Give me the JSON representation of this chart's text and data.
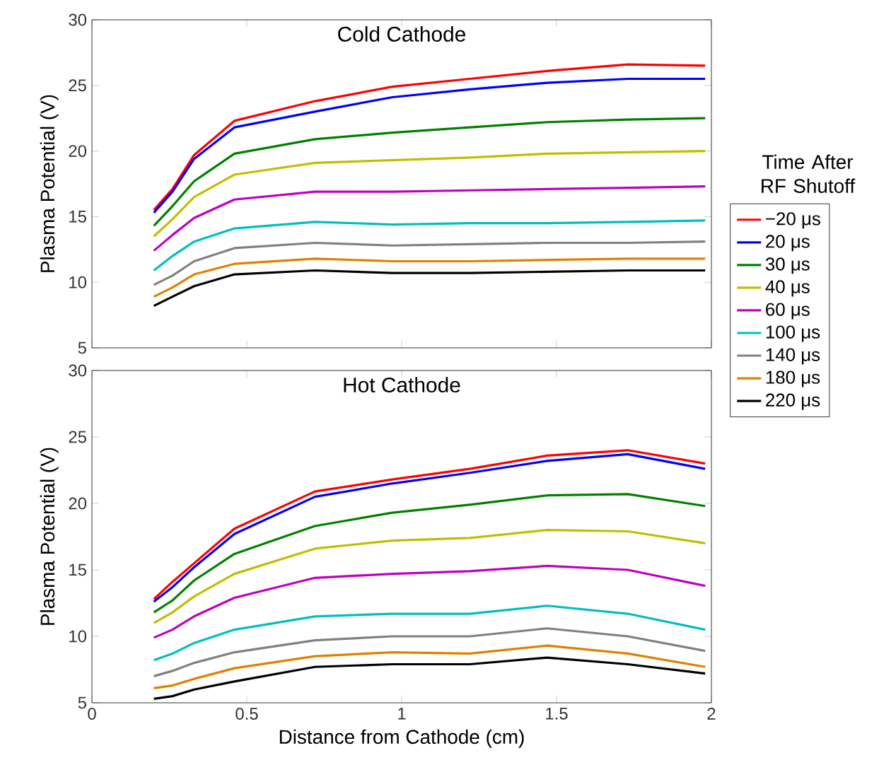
{
  "chart_data": [
    {
      "type": "line",
      "title": "Cold Cathode",
      "ylabel": "Plasma Potential (V)",
      "legend_title": "Time After RF Shutoff",
      "legend": "right",
      "tick_labels": "y",
      "x": [
        0.2,
        0.26,
        0.33,
        0.46,
        0.72,
        0.97,
        1.22,
        1.47,
        1.73,
        1.98
      ],
      "xlim": [
        0,
        2
      ],
      "xticks": [
        0,
        0.5,
        1,
        1.5,
        2
      ],
      "ylim": [
        5,
        30
      ],
      "yticks": [
        5,
        10,
        15,
        20,
        25,
        30
      ],
      "series": [
        {
          "name": "−20 μs",
          "color": "#ff0000",
          "values": [
            15.5,
            17.1,
            19.7,
            22.3,
            23.8,
            24.9,
            25.5,
            26.1,
            26.6,
            26.5
          ]
        },
        {
          "name": "20 μs",
          "color": "#0000ff",
          "values": [
            15.3,
            16.9,
            19.4,
            21.8,
            23.0,
            24.1,
            24.7,
            25.2,
            25.5,
            25.5
          ]
        },
        {
          "name": "30 μs",
          "color": "#008000",
          "values": [
            14.3,
            15.8,
            17.7,
            19.8,
            20.9,
            21.4,
            21.8,
            22.2,
            22.4,
            22.5
          ]
        },
        {
          "name": "40 μs",
          "color": "#bfbf00",
          "values": [
            13.5,
            14.8,
            16.5,
            18.2,
            19.1,
            19.3,
            19.5,
            19.8,
            19.9,
            20.0
          ]
        },
        {
          "name": "60 μs",
          "color": "#bf00bf",
          "values": [
            12.4,
            13.6,
            14.9,
            16.3,
            16.9,
            16.9,
            17.0,
            17.1,
            17.2,
            17.3
          ]
        },
        {
          "name": "100 μs",
          "color": "#00bfbf",
          "values": [
            10.9,
            12.0,
            13.1,
            14.1,
            14.6,
            14.4,
            14.5,
            14.5,
            14.6,
            14.7
          ]
        },
        {
          "name": "140 μs",
          "color": "#808080",
          "values": [
            9.8,
            10.5,
            11.6,
            12.6,
            13.0,
            12.8,
            12.9,
            13.0,
            13.0,
            13.1
          ]
        },
        {
          "name": "180 μs",
          "color": "#e08000",
          "values": [
            8.9,
            9.6,
            10.6,
            11.4,
            11.8,
            11.6,
            11.6,
            11.7,
            11.8,
            11.8
          ]
        },
        {
          "name": "220 μs",
          "color": "#000000",
          "values": [
            8.2,
            8.9,
            9.7,
            10.6,
            10.9,
            10.7,
            10.7,
            10.8,
            10.9,
            10.9
          ]
        }
      ]
    },
    {
      "type": "line",
      "title": "Hot Cathode",
      "xlabel": "Distance from Cathode (cm)",
      "ylabel": "Plasma Potential (V)",
      "x": [
        0.2,
        0.26,
        0.33,
        0.46,
        0.72,
        0.97,
        1.22,
        1.47,
        1.73,
        1.98
      ],
      "xlim": [
        0,
        2
      ],
      "xticks": [
        0,
        0.5,
        1,
        1.5,
        2
      ],
      "ylim": [
        5,
        30
      ],
      "yticks": [
        5,
        10,
        15,
        20,
        25,
        30
      ],
      "series": [
        {
          "color": "#ff0000",
          "values": [
            12.8,
            14.1,
            15.5,
            18.1,
            20.9,
            21.8,
            22.6,
            23.6,
            24.0,
            23.0
          ]
        },
        {
          "color": "#0000ff",
          "values": [
            12.6,
            13.7,
            15.2,
            17.7,
            20.5,
            21.5,
            22.3,
            23.2,
            23.7,
            22.6
          ]
        },
        {
          "color": "#008000",
          "values": [
            11.8,
            12.7,
            14.2,
            16.2,
            18.3,
            19.3,
            19.9,
            20.6,
            20.7,
            19.8
          ]
        },
        {
          "color": "#bfbf00",
          "values": [
            11.0,
            11.8,
            13.0,
            14.7,
            16.6,
            17.2,
            17.4,
            18.0,
            17.9,
            17.0
          ]
        },
        {
          "color": "#bf00bf",
          "values": [
            9.9,
            10.5,
            11.5,
            12.9,
            14.4,
            14.7,
            14.9,
            15.3,
            15.0,
            13.8
          ]
        },
        {
          "color": "#00bfbf",
          "values": [
            8.2,
            8.7,
            9.5,
            10.5,
            11.5,
            11.7,
            11.7,
            12.3,
            11.7,
            10.5
          ]
        },
        {
          "color": "#808080",
          "values": [
            7.0,
            7.4,
            8.0,
            8.8,
            9.7,
            10.0,
            10.0,
            10.6,
            10.0,
            8.9
          ]
        },
        {
          "color": "#e08000",
          "values": [
            6.1,
            6.3,
            6.8,
            7.6,
            8.5,
            8.8,
            8.7,
            9.3,
            8.7,
            7.7
          ]
        },
        {
          "color": "#000000",
          "values": [
            5.3,
            5.5,
            6.0,
            6.6,
            7.7,
            7.9,
            7.9,
            8.4,
            7.9,
            7.2
          ]
        }
      ]
    }
  ]
}
